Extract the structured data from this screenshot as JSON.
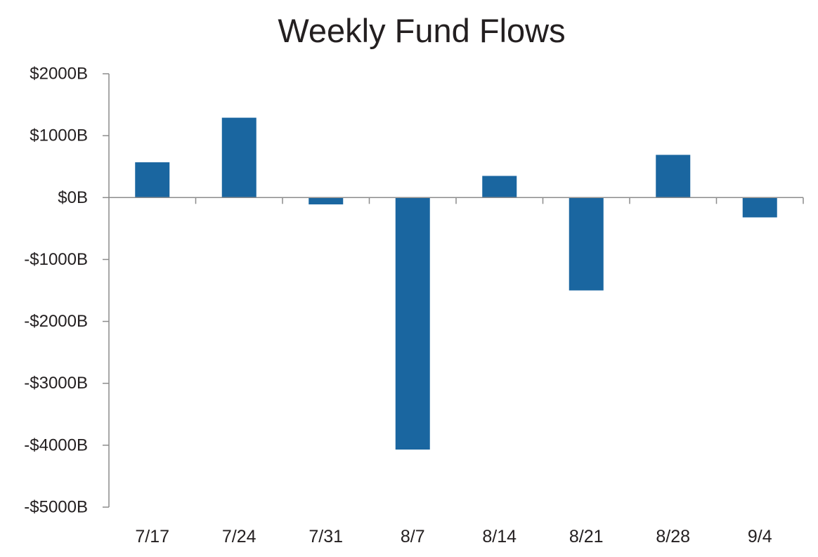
{
  "chart_data": {
    "type": "bar",
    "title": "Weekly Fund Flows",
    "xlabel": "",
    "ylabel": "",
    "categories": [
      "7/17",
      "7/24",
      "7/31",
      "8/7",
      "8/14",
      "8/21",
      "8/28",
      "9/4"
    ],
    "values": [
      570,
      1290,
      -110,
      -4070,
      350,
      -1500,
      690,
      -320
    ],
    "ylim": [
      -5000,
      2000
    ],
    "yticks": [
      2000,
      1000,
      0,
      -1000,
      -2000,
      -3000,
      -4000,
      -5000
    ],
    "ytick_labels": [
      "$2000B",
      "$1000B",
      "$0B",
      "-$1000B",
      "-$2000B",
      "-$3000B",
      "-$4000B",
      "-$5000B"
    ],
    "grid": false,
    "legend": "none",
    "bar_color": "#1a66a0"
  }
}
